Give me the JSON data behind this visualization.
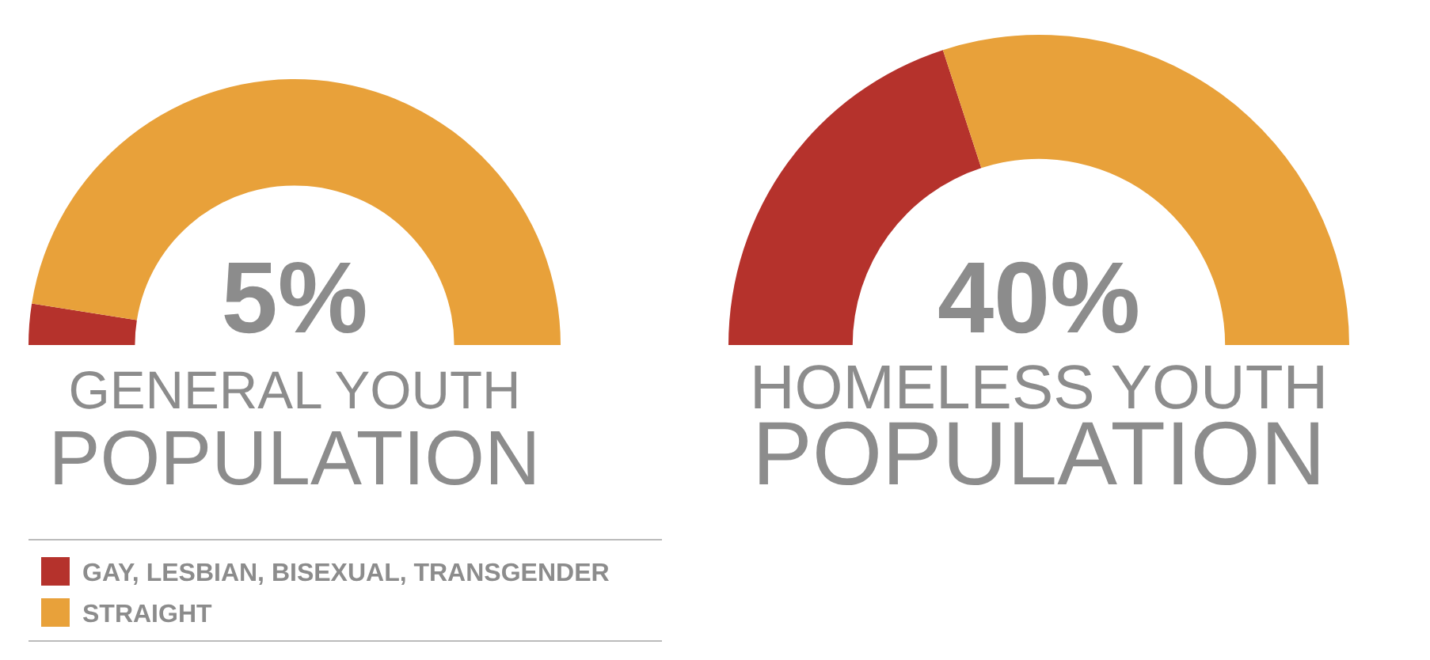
{
  "chart_data": [
    {
      "type": "donut",
      "title": "GENERAL YOUTH",
      "subtitle": "POPULATION",
      "categories": [
        "GAY, LESBIAN, BISEXUAL, TRANSGENDER",
        "STRAIGHT"
      ],
      "values": [
        5,
        95
      ],
      "colors": [
        "#b5322c",
        "#e8a13a"
      ],
      "annotations": [
        "5%"
      ],
      "legend": "bottom"
    },
    {
      "type": "donut",
      "title": "HOMELESS YOUTH",
      "subtitle": "POPULATION",
      "categories": [
        null,
        null
      ],
      "values": [
        40,
        60
      ],
      "colors": [
        "#b5322c",
        "#e8a13a"
      ],
      "annotations": [
        "40%"
      ],
      "legend": false
    }
  ]
}
